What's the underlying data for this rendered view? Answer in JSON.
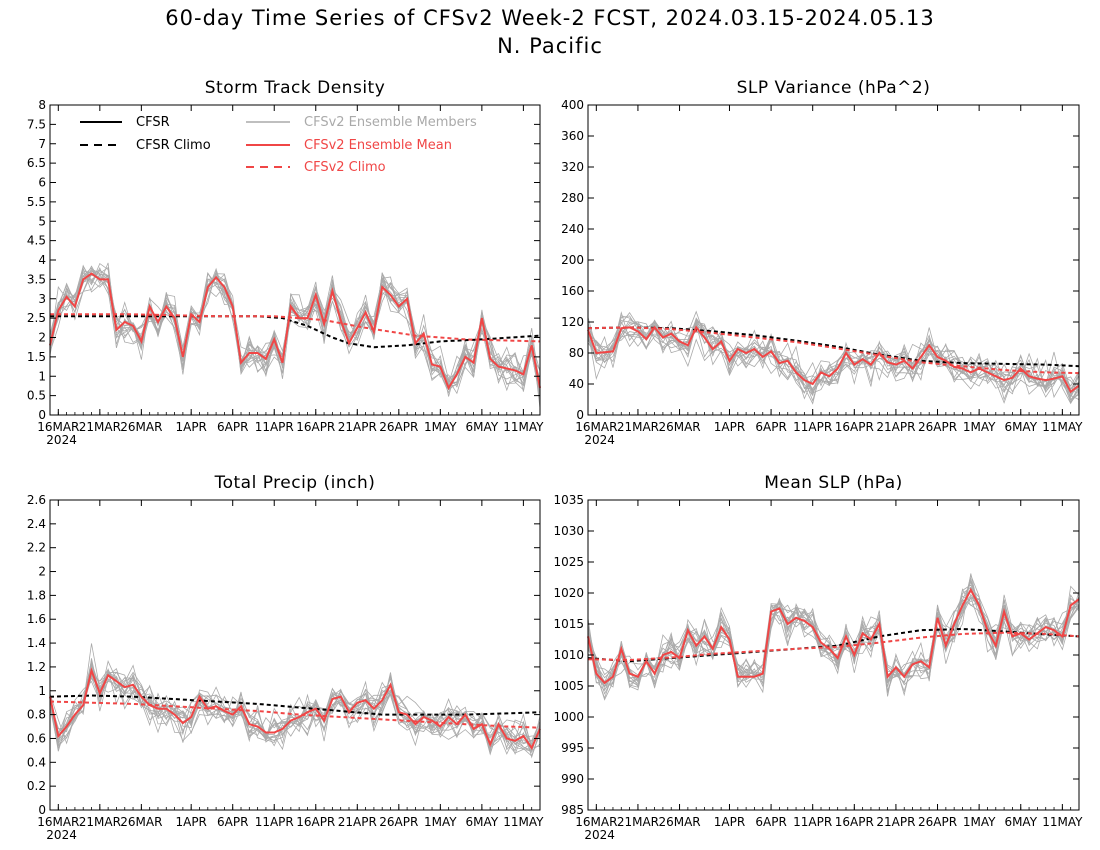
{
  "header": {
    "title": "60-day Time Series of CFSv2 Week-2 FCST, 2024.03.15-2024.05.13",
    "region": "N. Pacific"
  },
  "colors": {
    "cfsr": "#000000",
    "members": "#aaaaaa",
    "ensemble_mean": "#f04646",
    "cfsv2_climo": "#f04646"
  },
  "legend": {
    "cfsr": "CFSR",
    "cfsr_climo": "CFSR Climo",
    "members": "CFSv2 Ensemble Members",
    "ens_mean": "CFSv2 Ensemble Mean",
    "cfsv2_climo": "CFSv2 Climo"
  },
  "x_ticks": [
    "16MAR",
    "21MAR",
    "26MAR",
    "1APR",
    "6APR",
    "11APR",
    "16APR",
    "21APR",
    "26APR",
    "1MAY",
    "6MAY",
    "11MAY"
  ],
  "x_tick_days": [
    1,
    6,
    11,
    17,
    22,
    27,
    32,
    37,
    42,
    47,
    52,
    57
  ],
  "x_year": "2024",
  "chart_data": [
    {
      "type": "line",
      "title": "Storm Track Density",
      "xlabel": "",
      "ylabel": "",
      "ylim": [
        0,
        8
      ],
      "yticks": [
        "0",
        "0.5",
        "1",
        "1.5",
        "2",
        "2.5",
        "3",
        "3.5",
        "4",
        "4.5",
        "5",
        "5.5",
        "6",
        "6.5",
        "7",
        "7.5",
        "8"
      ],
      "x_days": [
        0,
        59
      ],
      "series": [
        {
          "name": "CFSR Climo",
          "kind": "climo_black",
          "x": [
            0,
            10,
            20,
            25,
            28,
            31,
            34,
            36,
            39,
            43,
            47,
            52,
            59
          ],
          "values": [
            2.55,
            2.55,
            2.55,
            2.55,
            2.5,
            2.3,
            2.0,
            1.85,
            1.75,
            1.8,
            1.9,
            1.95,
            2.05
          ]
        },
        {
          "name": "CFSv2 Climo",
          "kind": "climo_red",
          "x": [
            0,
            10,
            20,
            27,
            33,
            38,
            44,
            50,
            59
          ],
          "values": [
            2.6,
            2.6,
            2.55,
            2.55,
            2.45,
            2.25,
            2.05,
            1.95,
            1.9
          ]
        },
        {
          "name": "CFSv2 Ensemble Mean",
          "kind": "mean",
          "x": [
            0,
            1,
            2,
            3,
            4,
            5,
            6,
            7,
            8,
            9,
            10,
            11,
            12,
            13,
            14,
            15,
            16,
            17,
            18,
            19,
            20,
            21,
            22,
            23,
            24,
            25,
            26,
            27,
            28,
            29,
            30,
            31,
            32,
            33,
            34,
            35,
            36,
            37,
            38,
            39,
            40,
            41,
            42,
            43,
            44,
            45,
            46,
            47,
            48,
            49,
            50,
            51,
            52,
            53,
            54,
            55,
            56,
            57,
            58,
            59
          ],
          "values": [
            1.8,
            2.7,
            3.05,
            2.8,
            3.5,
            3.65,
            3.5,
            3.5,
            2.2,
            2.4,
            2.3,
            1.9,
            2.8,
            2.4,
            2.8,
            2.5,
            1.5,
            2.6,
            2.4,
            3.3,
            3.55,
            3.3,
            2.8,
            1.35,
            1.6,
            1.6,
            1.45,
            1.95,
            1.35,
            2.8,
            2.5,
            2.5,
            3.1,
            2.35,
            3.2,
            2.45,
            1.85,
            2.25,
            2.65,
            2.15,
            3.3,
            3.1,
            2.8,
            3.0,
            1.85,
            2.1,
            1.3,
            1.25,
            0.7,
            1.05,
            1.5,
            1.35,
            2.5,
            1.45,
            1.25,
            1.2,
            1.15,
            1.05,
            1.8,
            0.7
          ]
        }
      ]
    },
    {
      "type": "line",
      "title": "SLP Variance (hPa^2)",
      "xlabel": "",
      "ylabel": "",
      "ylim": [
        0,
        400
      ],
      "yticks": [
        "0",
        "40",
        "80",
        "120",
        "160",
        "200",
        "240",
        "280",
        "320",
        "360",
        "400"
      ],
      "x_days": [
        0,
        59
      ],
      "series": [
        {
          "name": "CFSR Climo",
          "kind": "climo_black",
          "x": [
            0,
            5,
            10,
            15,
            20,
            25,
            30,
            35,
            40,
            45,
            50,
            55,
            59
          ],
          "values": [
            112,
            113,
            112,
            108,
            103,
            96,
            88,
            78,
            70,
            67,
            66,
            65,
            63
          ]
        },
        {
          "name": "CFSv2 Climo",
          "kind": "climo_red",
          "x": [
            0,
            5,
            10,
            15,
            20,
            25,
            30,
            35,
            40,
            45,
            50,
            55,
            59
          ],
          "values": [
            112,
            113,
            111,
            106,
            100,
            94,
            86,
            77,
            68,
            63,
            58,
            55,
            54
          ]
        },
        {
          "name": "CFSv2 Ensemble Mean",
          "kind": "mean",
          "x": [
            0,
            1,
            2,
            3,
            4,
            5,
            6,
            7,
            8,
            9,
            10,
            11,
            12,
            13,
            14,
            15,
            16,
            17,
            18,
            19,
            20,
            21,
            22,
            23,
            24,
            25,
            26,
            27,
            28,
            29,
            30,
            31,
            32,
            33,
            34,
            35,
            36,
            37,
            38,
            39,
            40,
            41,
            42,
            43,
            44,
            45,
            46,
            47,
            48,
            49,
            50,
            51,
            52,
            53,
            54,
            55,
            56,
            57,
            58,
            59
          ],
          "values": [
            110,
            80,
            81,
            82,
            112,
            113,
            108,
            98,
            113,
            100,
            105,
            95,
            90,
            113,
            100,
            85,
            95,
            70,
            85,
            80,
            85,
            75,
            82,
            67,
            70,
            55,
            45,
            40,
            55,
            50,
            60,
            80,
            65,
            72,
            65,
            80,
            68,
            65,
            70,
            60,
            75,
            90,
            75,
            70,
            62,
            60,
            55,
            60,
            55,
            50,
            45,
            48,
            60,
            50,
            47,
            45,
            47,
            50,
            30,
            38
          ]
        }
      ]
    },
    {
      "type": "line",
      "title": "Total Precip (inch)",
      "xlabel": "",
      "ylabel": "",
      "ylim": [
        0,
        2.6
      ],
      "yticks": [
        "0",
        "0.2",
        "0.4",
        "0.6",
        "0.8",
        "1",
        "1.2",
        "1.4",
        "1.6",
        "1.8",
        "2",
        "2.2",
        "2.4",
        "2.6"
      ],
      "x_days": [
        0,
        59
      ],
      "series": [
        {
          "name": "CFSR Climo",
          "kind": "climo_black",
          "x": [
            0,
            5,
            10,
            15,
            20,
            25,
            30,
            35,
            40,
            45,
            50,
            55,
            59
          ],
          "values": [
            0.95,
            0.96,
            0.95,
            0.93,
            0.91,
            0.89,
            0.86,
            0.83,
            0.8,
            0.8,
            0.8,
            0.81,
            0.82
          ]
        },
        {
          "name": "CFSv2 Climo",
          "kind": "climo_red",
          "x": [
            0,
            5,
            10,
            15,
            20,
            25,
            30,
            35,
            40,
            45,
            50,
            55,
            59
          ],
          "values": [
            0.91,
            0.9,
            0.89,
            0.87,
            0.85,
            0.83,
            0.8,
            0.78,
            0.76,
            0.74,
            0.72,
            0.7,
            0.69
          ]
        },
        {
          "name": "CFSv2 Ensemble Mean",
          "kind": "mean",
          "x": [
            0,
            1,
            2,
            3,
            4,
            5,
            6,
            7,
            8,
            9,
            10,
            11,
            12,
            13,
            14,
            15,
            16,
            17,
            18,
            19,
            20,
            21,
            22,
            23,
            24,
            25,
            26,
            27,
            28,
            29,
            30,
            31,
            32,
            33,
            34,
            35,
            36,
            37,
            38,
            39,
            40,
            41,
            42,
            43,
            44,
            45,
            46,
            47,
            48,
            49,
            50,
            51,
            52,
            53,
            54,
            55,
            56,
            57,
            58,
            59
          ],
          "values": [
            0.95,
            0.62,
            0.7,
            0.8,
            0.88,
            1.17,
            0.98,
            1.13,
            1.08,
            1.03,
            1.05,
            0.95,
            0.88,
            0.85,
            0.85,
            0.8,
            0.73,
            0.78,
            0.95,
            0.85,
            0.87,
            0.83,
            0.8,
            0.87,
            0.72,
            0.7,
            0.65,
            0.65,
            0.68,
            0.75,
            0.78,
            0.82,
            0.85,
            0.75,
            0.93,
            0.95,
            0.82,
            0.9,
            0.92,
            0.85,
            0.92,
            1.05,
            0.82,
            0.8,
            0.72,
            0.78,
            0.75,
            0.7,
            0.78,
            0.72,
            0.8,
            0.68,
            0.72,
            0.55,
            0.72,
            0.6,
            0.58,
            0.62,
            0.52,
            0.68
          ]
        }
      ]
    },
    {
      "type": "line",
      "title": "Mean SLP (hPa)",
      "xlabel": "",
      "ylabel": "",
      "ylim": [
        985,
        1035
      ],
      "yticks": [
        "985",
        "990",
        "995",
        "1000",
        "1005",
        "1010",
        "1015",
        "1020",
        "1025",
        "1030",
        "1035"
      ],
      "x_days": [
        0,
        59
      ],
      "series": [
        {
          "name": "CFSR Climo",
          "kind": "climo_black",
          "x": [
            0,
            5,
            10,
            15,
            20,
            25,
            30,
            35,
            40,
            45,
            50,
            55,
            59
          ],
          "values": [
            1009.5,
            1009,
            1009.5,
            1010,
            1010.5,
            1011,
            1011.5,
            1013,
            1014,
            1014.2,
            1013.8,
            1013.3,
            1013
          ]
        },
        {
          "name": "CFSv2 Climo",
          "kind": "climo_red",
          "x": [
            0,
            5,
            10,
            15,
            20,
            25,
            30,
            35,
            40,
            45,
            50,
            55,
            59
          ],
          "values": [
            1009.3,
            1009.2,
            1009.6,
            1010.2,
            1010.6,
            1011,
            1011.3,
            1012,
            1012.8,
            1013.4,
            1013.6,
            1013.4,
            1013
          ]
        },
        {
          "name": "CFSv2 Ensemble Mean",
          "kind": "mean",
          "x": [
            0,
            1,
            2,
            3,
            4,
            5,
            6,
            7,
            8,
            9,
            10,
            11,
            12,
            13,
            14,
            15,
            16,
            17,
            18,
            19,
            20,
            21,
            22,
            23,
            24,
            25,
            26,
            27,
            28,
            29,
            30,
            31,
            32,
            33,
            34,
            35,
            36,
            37,
            38,
            39,
            40,
            41,
            42,
            43,
            44,
            45,
            46,
            47,
            48,
            49,
            50,
            51,
            52,
            53,
            54,
            55,
            56,
            57,
            58,
            59
          ],
          "values": [
            1013,
            1007,
            1005.5,
            1006.5,
            1011,
            1007,
            1006.5,
            1009,
            1007,
            1010,
            1010.5,
            1009.5,
            1014,
            1011.5,
            1013,
            1011,
            1014.5,
            1012.5,
            1006.5,
            1006.5,
            1006.5,
            1007,
            1017,
            1017.5,
            1015,
            1016,
            1015.5,
            1014.5,
            1012,
            1011,
            1009.5,
            1013,
            1010,
            1013.5,
            1012.5,
            1015,
            1006.5,
            1008,
            1006.5,
            1008.5,
            1009,
            1008,
            1016,
            1011.5,
            1015,
            1018,
            1020.5,
            1018,
            1014,
            1011.5,
            1017,
            1013,
            1013.5,
            1012.5,
            1013.5,
            1014.5,
            1014,
            1013,
            1018,
            1019
          ]
        }
      ]
    }
  ]
}
